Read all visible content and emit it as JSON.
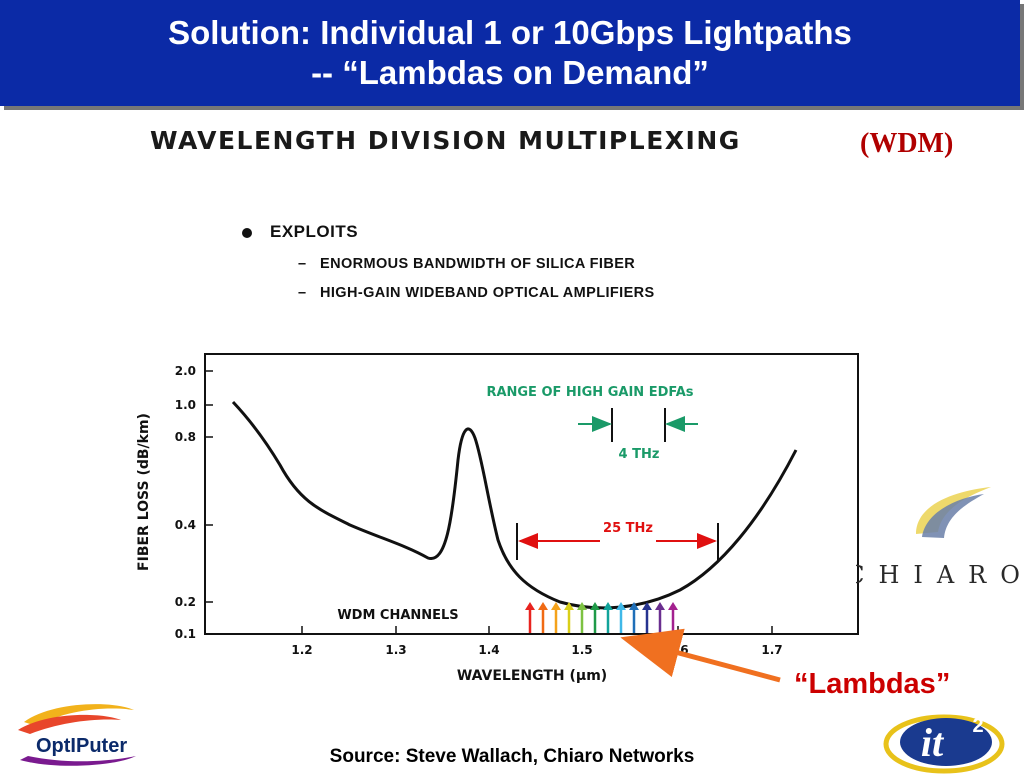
{
  "title": {
    "line1": "Solution: Individual 1 or 10Gbps Lightpaths",
    "line2": "-- “Lambdas on Demand”"
  },
  "heading": {
    "text": "WAVELENGTH DIVISION MULTIPLEXING",
    "abbrev": "(WDM)"
  },
  "bullets": {
    "main": "EXPLOITS",
    "items": [
      "ENORMOUS BANDWIDTH OF SILICA FIBER",
      "HIGH-GAIN WIDEBAND OPTICAL AMPLIFIERS"
    ]
  },
  "chart": {
    "ylabel": "FIBER LOSS (dB/km)",
    "xlabel": "WAVELENGTH (μm)",
    "yticks": [
      "2.0",
      "1.0",
      "0.8",
      "0.4",
      "0.2",
      "0.1"
    ],
    "xticks": [
      "1.2",
      "1.3",
      "1.4",
      "1.5",
      "1.6",
      "1.7"
    ],
    "edfa_label": "RANGE OF HIGH GAIN EDFAs",
    "edfa_width": "4 THz",
    "band_width": "25 THz",
    "channels_label": "WDM CHANNELS",
    "channel_colors": [
      "#e8231f",
      "#f06a14",
      "#f4a21a",
      "#d9cf18",
      "#7dc242",
      "#1f9a48",
      "#11a39a",
      "#3fb8e8",
      "#1f6fb8",
      "#26338f",
      "#6a2e8f",
      "#a3218f"
    ],
    "edfa_color": "#1a9a68",
    "band_color": "#e01010"
  },
  "logos": {
    "chiaro": "CHIARO",
    "optiputer": "OptIPuter",
    "it2": "it",
    "it2_sup": "2"
  },
  "lambdas_label": "“Lambdas”",
  "source": "Source: Steve Wallach, Chiaro Networks"
}
